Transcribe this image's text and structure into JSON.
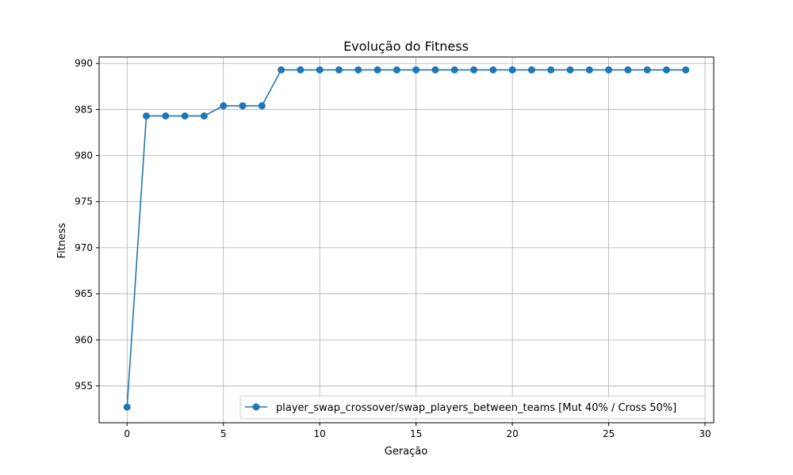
{
  "chart_data": {
    "type": "line",
    "title": "Evolução do Fitness",
    "xlabel": "Geração",
    "ylabel": "Fitness",
    "xlim": [
      -1.45,
      30.45
    ],
    "ylim": [
      951.0,
      990.7
    ],
    "xticks": [
      0,
      5,
      10,
      15,
      20,
      25,
      30
    ],
    "yticks": [
      955,
      960,
      965,
      970,
      975,
      980,
      985,
      990
    ],
    "grid": true,
    "legend_position": "lower-right",
    "series": [
      {
        "name": "player_swap_crossover/swap_players_between_teams [Mut 40% / Cross 50%]",
        "color": "#1f77b4",
        "marker": "circle",
        "x": [
          0,
          1,
          2,
          3,
          4,
          5,
          6,
          7,
          8,
          9,
          10,
          11,
          12,
          13,
          14,
          15,
          16,
          17,
          18,
          19,
          20,
          21,
          22,
          23,
          24,
          25,
          26,
          27,
          28,
          29
        ],
        "y": [
          952.7,
          984.3,
          984.3,
          984.3,
          984.3,
          985.4,
          985.4,
          985.4,
          989.3,
          989.3,
          989.3,
          989.3,
          989.3,
          989.3,
          989.3,
          989.3,
          989.3,
          989.3,
          989.3,
          989.3,
          989.3,
          989.3,
          989.3,
          989.3,
          989.3,
          989.3,
          989.3,
          989.3,
          989.3,
          989.3
        ]
      }
    ]
  }
}
